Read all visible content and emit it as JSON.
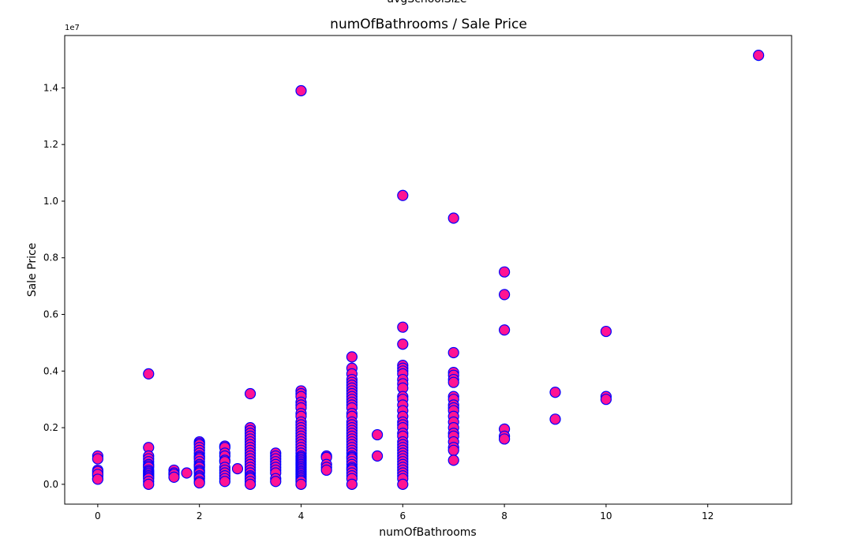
{
  "top_cut_title": "avgSchoolSize",
  "chart_data": {
    "type": "scatter",
    "title": "numOfBathrooms / Sale Price",
    "xlabel": "numOfBathrooms",
    "ylabel": "Sale Price",
    "y_offset_label": "1e7",
    "xlim": [
      -0.65,
      13.65
    ],
    "ylim": [
      -0.07,
      1.585
    ],
    "x_ticks": [
      0,
      2,
      4,
      6,
      8,
      10,
      12
    ],
    "x_tick_labels": [
      "0",
      "2",
      "4",
      "6",
      "8",
      "10",
      "12"
    ],
    "y_ticks": [
      0.0,
      0.2,
      0.4,
      0.6,
      0.8,
      1.0,
      1.2,
      1.4
    ],
    "y_tick_labels": [
      "0.0",
      "0.2",
      "0.4",
      "0.6",
      "0.8",
      "1.0",
      "1.2",
      "1.4"
    ],
    "y_scale_note": "values in units of 1e7",
    "grid": false,
    "marker_fill": "#ff1493",
    "marker_edge": "#0000ff",
    "x": [
      0,
      0,
      0,
      0,
      0,
      0,
      0,
      0,
      0,
      1,
      1,
      1,
      1,
      1,
      1,
      1,
      1,
      1,
      1,
      1,
      1,
      1,
      1,
      1,
      1,
      1,
      1.5,
      1.5,
      1.5,
      1.5,
      1.75,
      2,
      2,
      2,
      2,
      2,
      2,
      2,
      2,
      2,
      2,
      2,
      2,
      2,
      2,
      2,
      2,
      2,
      2,
      2,
      2,
      2,
      2.5,
      2.5,
      2.5,
      2.5,
      2.5,
      2.5,
      2.5,
      2.5,
      2.5,
      2.5,
      2.5,
      2.5,
      2.75,
      3,
      3,
      3,
      3,
      3,
      3,
      3,
      3,
      3,
      3,
      3,
      3,
      3,
      3,
      3,
      3,
      3,
      3,
      3,
      3,
      3,
      3,
      3,
      3.5,
      3.5,
      3.5,
      3.5,
      3.5,
      3.5,
      3.5,
      3.5,
      3.5,
      3.5,
      4,
      4,
      4,
      4,
      4,
      4,
      4,
      4,
      4,
      4,
      4,
      4,
      4,
      4,
      4,
      4,
      4,
      4,
      4,
      4,
      4,
      4,
      4,
      4,
      4,
      4,
      4,
      4,
      4,
      4,
      4,
      4,
      4,
      4,
      4,
      4,
      4,
      4,
      4,
      4,
      4,
      4.5,
      4.5,
      4.5,
      4.5,
      4.5,
      5,
      5,
      5,
      5,
      5,
      5,
      5,
      5,
      5,
      5,
      5,
      5,
      5,
      5,
      5,
      5,
      5,
      5,
      5,
      5,
      5,
      5,
      5,
      5,
      5,
      5,
      5,
      5,
      5,
      5,
      5,
      5,
      5,
      5,
      5,
      5,
      5,
      5,
      5,
      5,
      5.5,
      5.5,
      6,
      6,
      6,
      6,
      6,
      6,
      6,
      6,
      6,
      6,
      6,
      6,
      6,
      6,
      6,
      6,
      6,
      6,
      6,
      6,
      6,
      6,
      6,
      6,
      6,
      6,
      6,
      6,
      6,
      6,
      6,
      6,
      6,
      6,
      6,
      7,
      7,
      7,
      7,
      7,
      7,
      7,
      7,
      7,
      7,
      7,
      7,
      7,
      7,
      7,
      7,
      7,
      7,
      7,
      7,
      8,
      8,
      8,
      8,
      8,
      8,
      9,
      9,
      10,
      10,
      10,
      13
    ],
    "y": [
      0.1,
      0.09,
      0.05,
      0.04,
      0.03,
      0.02,
      0.045,
      0.035,
      0.018,
      0.39,
      0.13,
      0.1,
      0.09,
      0.08,
      0.07,
      0.065,
      0.06,
      0.05,
      0.045,
      0.04,
      0.035,
      0.03,
      0.025,
      0.02,
      0.01,
      0.0,
      0.05,
      0.04,
      0.035,
      0.025,
      0.04,
      0.15,
      0.145,
      0.14,
      0.13,
      0.12,
      0.11,
      0.1,
      0.095,
      0.09,
      0.08,
      0.07,
      0.065,
      0.06,
      0.05,
      0.045,
      0.04,
      0.03,
      0.025,
      0.02,
      0.01,
      0.005,
      0.135,
      0.13,
      0.11,
      0.1,
      0.085,
      0.08,
      0.06,
      0.05,
      0.04,
      0.03,
      0.02,
      0.01,
      0.055,
      0.32,
      0.2,
      0.19,
      0.18,
      0.17,
      0.16,
      0.15,
      0.14,
      0.13,
      0.12,
      0.11,
      0.1,
      0.09,
      0.08,
      0.07,
      0.06,
      0.05,
      0.04,
      0.03,
      0.025,
      0.02,
      0.01,
      0.0,
      0.11,
      0.1,
      0.09,
      0.08,
      0.07,
      0.06,
      0.05,
      0.04,
      0.02,
      0.01,
      1.39,
      0.33,
      0.32,
      0.31,
      0.29,
      0.28,
      0.27,
      0.25,
      0.24,
      0.22,
      0.21,
      0.2,
      0.19,
      0.18,
      0.17,
      0.16,
      0.15,
      0.14,
      0.13,
      0.12,
      0.11,
      0.1,
      0.095,
      0.09,
      0.085,
      0.08,
      0.075,
      0.07,
      0.065,
      0.06,
      0.055,
      0.05,
      0.045,
      0.04,
      0.035,
      0.03,
      0.025,
      0.02,
      0.015,
      0.01,
      0.0,
      0.1,
      0.095,
      0.07,
      0.06,
      0.05,
      0.45,
      0.41,
      0.39,
      0.37,
      0.36,
      0.35,
      0.34,
      0.33,
      0.32,
      0.31,
      0.3,
      0.29,
      0.28,
      0.27,
      0.25,
      0.24,
      0.22,
      0.21,
      0.2,
      0.19,
      0.18,
      0.17,
      0.16,
      0.15,
      0.14,
      0.13,
      0.12,
      0.11,
      0.1,
      0.095,
      0.09,
      0.08,
      0.07,
      0.06,
      0.055,
      0.05,
      0.04,
      0.03,
      0.02,
      0.0,
      0.175,
      0.1,
      1.02,
      0.555,
      0.495,
      0.42,
      0.41,
      0.4,
      0.39,
      0.37,
      0.355,
      0.34,
      0.31,
      0.3,
      0.28,
      0.26,
      0.24,
      0.22,
      0.21,
      0.2,
      0.18,
      0.17,
      0.15,
      0.14,
      0.13,
      0.12,
      0.11,
      0.1,
      0.09,
      0.08,
      0.07,
      0.06,
      0.05,
      0.04,
      0.03,
      0.02,
      0.0,
      0.94,
      0.465,
      0.395,
      0.385,
      0.37,
      0.36,
      0.31,
      0.3,
      0.28,
      0.27,
      0.26,
      0.24,
      0.22,
      0.2,
      0.18,
      0.17,
      0.15,
      0.13,
      0.12,
      0.085,
      0.75,
      0.67,
      0.545,
      0.195,
      0.17,
      0.16,
      0.325,
      0.23,
      0.54,
      0.31,
      0.3,
      1.515
    ]
  }
}
